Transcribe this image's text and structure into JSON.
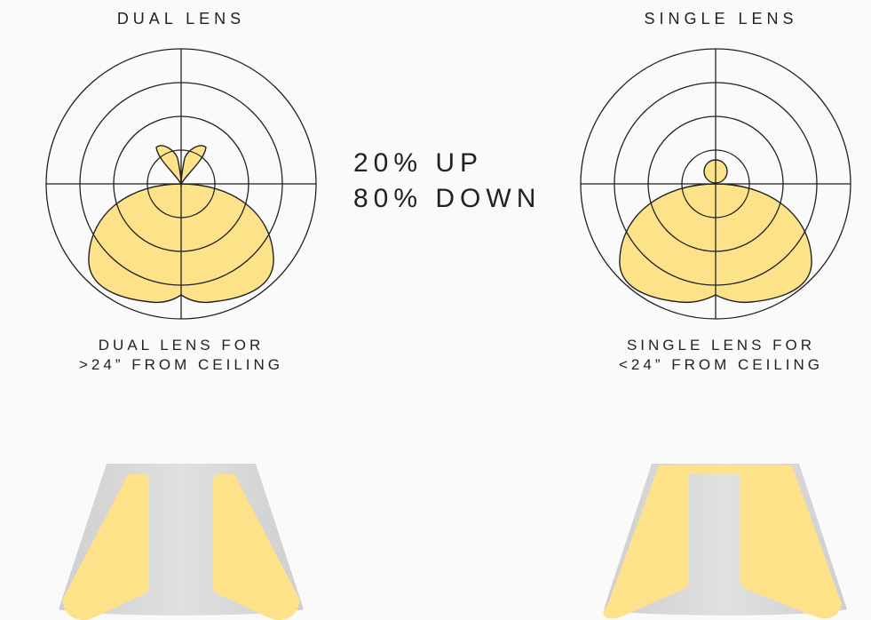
{
  "left_panel": {
    "title": "DUAL LENS",
    "caption_line1": "DUAL LENS FOR",
    "caption_line2": ">24” FROM CEILING"
  },
  "right_panel": {
    "title": "SINGLE LENS",
    "caption_line1": "SINGLE LENS FOR",
    "caption_line2": "<24” FROM CEILING"
  },
  "distribution": {
    "line1": "20% UP",
    "line2": "80% DOWN"
  },
  "colors": {
    "lens_yellow": "#fde28a",
    "outline": "#222222",
    "shade_gray": "#d9d9d9",
    "background": "#fafafa"
  }
}
